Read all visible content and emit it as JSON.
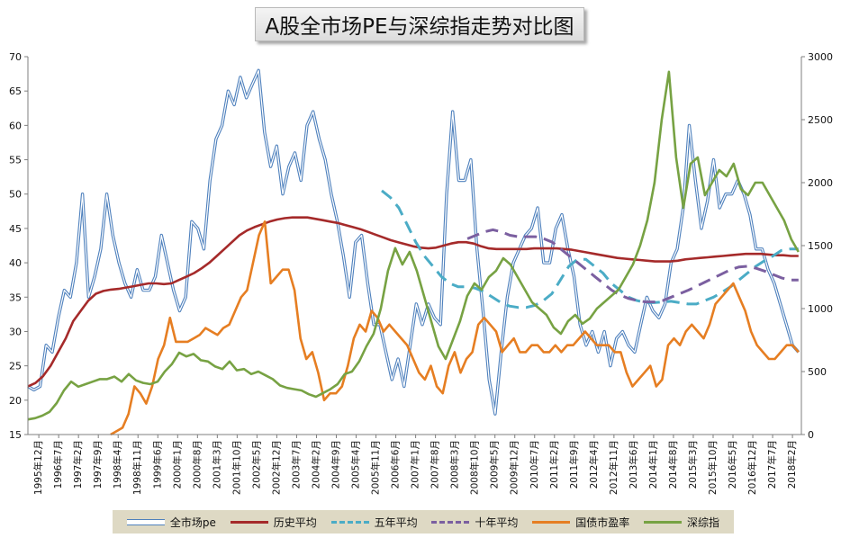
{
  "chart_data": {
    "type": "line",
    "title": "A股全市场PE与深综指走势对比图",
    "xlabel": "",
    "ylabel": "",
    "x_ticks": [
      "1995年12月",
      "1996年7月",
      "1997年2月",
      "1997年9月",
      "1998年4月",
      "1998年11月",
      "1999年6月",
      "2000年1月",
      "2000年8月",
      "2001年3月",
      "2001年10月",
      "2002年5月",
      "2002年12月",
      "2003年7月",
      "2004年2月",
      "2004年9月",
      "2005年4月",
      "2005年11月",
      "2006年6月",
      "2007年1月",
      "2007年8月",
      "2008年3月",
      "2008年10月",
      "2009年5月",
      "2009年12月",
      "2010年7月",
      "2011年2月",
      "2011年9月",
      "2012年4月",
      "2012年11月",
      "2013年6月",
      "2014年1月",
      "2014年8月",
      "2015年3月",
      "2015年10月",
      "2016年5月",
      "2016年12月",
      "2017年7月",
      "2018年2月"
    ],
    "ylim_left": [
      15,
      70
    ],
    "yticks_left": [
      15,
      20,
      25,
      30,
      35,
      40,
      45,
      50,
      55,
      60,
      65,
      70
    ],
    "ylim_right": [
      0,
      3000
    ],
    "yticks_right": [
      0,
      500,
      1000,
      1500,
      2000,
      2500,
      3000
    ],
    "grid": false,
    "legend_position": "bottom",
    "series": [
      {
        "name": "全市场pe",
        "axis": "left",
        "style": "double",
        "color": "#4f81bd",
        "values": [
          22,
          21.5,
          22,
          28,
          27,
          32,
          36,
          35,
          40,
          50,
          35,
          38,
          42,
          50,
          44,
          40,
          37,
          35,
          39,
          36,
          36,
          38,
          44,
          40,
          36,
          33,
          35,
          46,
          45,
          42,
          52,
          58,
          60,
          65,
          63,
          67,
          64,
          66,
          68,
          59,
          54,
          57,
          50,
          54,
          56,
          52,
          60,
          62,
          58,
          55,
          50,
          46,
          41,
          35,
          43,
          44,
          37,
          31,
          31,
          27,
          23,
          26,
          22,
          28,
          34,
          31,
          34,
          32,
          31,
          50,
          62,
          52,
          52,
          55,
          42,
          33,
          23,
          18,
          27,
          35,
          40,
          42,
          44,
          45,
          48,
          40,
          40,
          45,
          47,
          42,
          38,
          31,
          28,
          30,
          27,
          30,
          25,
          29,
          30,
          28,
          27,
          31,
          35,
          33,
          32,
          34,
          40,
          42,
          48,
          60,
          52,
          45,
          49,
          55,
          48,
          50,
          50,
          52,
          50,
          47,
          42,
          42,
          39,
          37,
          34,
          31,
          28,
          27
        ]
      },
      {
        "name": "历史平均",
        "axis": "left",
        "style": "solid",
        "color": "#a52a2a",
        "values": [
          22,
          22.5,
          23.5,
          25,
          27,
          29,
          31.5,
          33,
          34.5,
          35.5,
          35.9,
          36.1,
          36.2,
          36.4,
          36.6,
          36.8,
          37,
          37,
          36.9,
          37,
          37.5,
          38,
          38.5,
          39.2,
          40,
          41,
          42,
          43,
          44,
          44.7,
          45.2,
          45.6,
          46,
          46.3,
          46.5,
          46.6,
          46.6,
          46.6,
          46.4,
          46.2,
          46,
          45.8,
          45.5,
          45.2,
          44.9,
          44.5,
          44.1,
          43.7,
          43.3,
          43,
          42.7,
          42.4,
          42.2,
          42.1,
          42.2,
          42.5,
          42.8,
          43,
          43,
          42.8,
          42.4,
          42.1,
          42,
          42,
          42,
          42,
          42,
          42.1,
          42.1,
          42.1,
          42.1,
          42,
          41.9,
          41.7,
          41.5,
          41.3,
          41.1,
          40.9,
          40.7,
          40.6,
          40.5,
          40.4,
          40.3,
          40.2,
          40.2,
          40.2,
          40.3,
          40.5,
          40.6,
          40.7,
          40.8,
          40.9,
          41,
          41.1,
          41.2,
          41.3,
          41.3,
          41.3,
          41.2,
          41.1,
          41.1,
          41,
          41
        ]
      },
      {
        "name": "五年平均",
        "axis": "left",
        "style": "dashed",
        "color": "#4bacc6",
        "values": [
          50.5,
          49.5,
          48,
          45.5,
          43,
          41,
          39.5,
          38,
          37,
          36.5,
          36.5,
          36.3,
          35.8,
          35,
          34.2,
          33.7,
          33.5,
          33.5,
          33.8,
          34.5,
          35.5,
          37.5,
          39.5,
          40.5,
          40.5,
          39.5,
          38.5,
          37,
          36,
          35,
          34.5,
          34.2,
          34.2,
          34.3,
          34.4,
          34.2,
          34,
          34,
          34.5,
          35,
          35.7,
          36.5,
          37.5,
          38.5,
          39.5,
          40.3,
          41,
          41.8,
          42,
          42
        ]
      },
      {
        "name": "十年平均",
        "axis": "left",
        "style": "dashed",
        "color": "#7b5fa0",
        "values": [
          43.5,
          44,
          44.5,
          44.8,
          44.5,
          44,
          43.8,
          43.8,
          43.8,
          43.5,
          43,
          42,
          41,
          40,
          39,
          38,
          37,
          36,
          35.3,
          34.8,
          34.5,
          34.3,
          34.3,
          34.5,
          35,
          35.5,
          36,
          36.6,
          37.2,
          37.8,
          38.4,
          39,
          39.4,
          39.5,
          39.2,
          38.8,
          38.3,
          37.8,
          37.5,
          37.5
        ]
      },
      {
        "name": "国债市盈率",
        "axis": "left",
        "style": "solid",
        "color": "#e67e22",
        "values": [
          15,
          15.5,
          16,
          18,
          22,
          21,
          19.5,
          22,
          26,
          28,
          32,
          28.5,
          28.5,
          28.5,
          29,
          29.5,
          30.5,
          30,
          29.5,
          30.5,
          31,
          33,
          35,
          36,
          40,
          44,
          46,
          37,
          38,
          39,
          39,
          36,
          29,
          26,
          27,
          24,
          20,
          21,
          21,
          22,
          25,
          29,
          31,
          30,
          33,
          32,
          30,
          31,
          30,
          29,
          28,
          26,
          24,
          23,
          25,
          22,
          21,
          25,
          27,
          24,
          26,
          27,
          31,
          32,
          31,
          30,
          27,
          28,
          29,
          27,
          27,
          28,
          28,
          27,
          27,
          28,
          27,
          28,
          28,
          29,
          30,
          29,
          28,
          28,
          28,
          27,
          27,
          24,
          22,
          23,
          24,
          25,
          22,
          23,
          28,
          29,
          28,
          30,
          31,
          30,
          29,
          31,
          34,
          35,
          36,
          37,
          35,
          33,
          30,
          28,
          27,
          26,
          26,
          27,
          28,
          28,
          27
        ]
      },
      {
        "name": "深综指",
        "axis": "right",
        "style": "solid",
        "color": "#77a243",
        "values": [
          120,
          130,
          150,
          180,
          250,
          350,
          420,
          380,
          400,
          420,
          440,
          440,
          460,
          420,
          480,
          430,
          410,
          400,
          420,
          500,
          560,
          650,
          620,
          640,
          590,
          580,
          540,
          520,
          580,
          510,
          520,
          480,
          500,
          470,
          440,
          390,
          370,
          360,
          350,
          320,
          300,
          330,
          360,
          400,
          480,
          500,
          580,
          700,
          800,
          1000,
          1300,
          1480,
          1350,
          1450,
          1300,
          1100,
          900,
          700,
          600,
          750,
          900,
          1100,
          1200,
          1150,
          1250,
          1300,
          1400,
          1350,
          1250,
          1150,
          1050,
          1000,
          950,
          850,
          800,
          900,
          950,
          880,
          920,
          1000,
          1050,
          1100,
          1150,
          1250,
          1350,
          1500,
          1700,
          2000,
          2500,
          2880,
          2200,
          1800,
          2150,
          2200,
          1900,
          2000,
          2100,
          2050,
          2150,
          1950,
          1900,
          2000,
          2000,
          1900,
          1800,
          1700,
          1550,
          1450
        ]
      }
    ]
  }
}
